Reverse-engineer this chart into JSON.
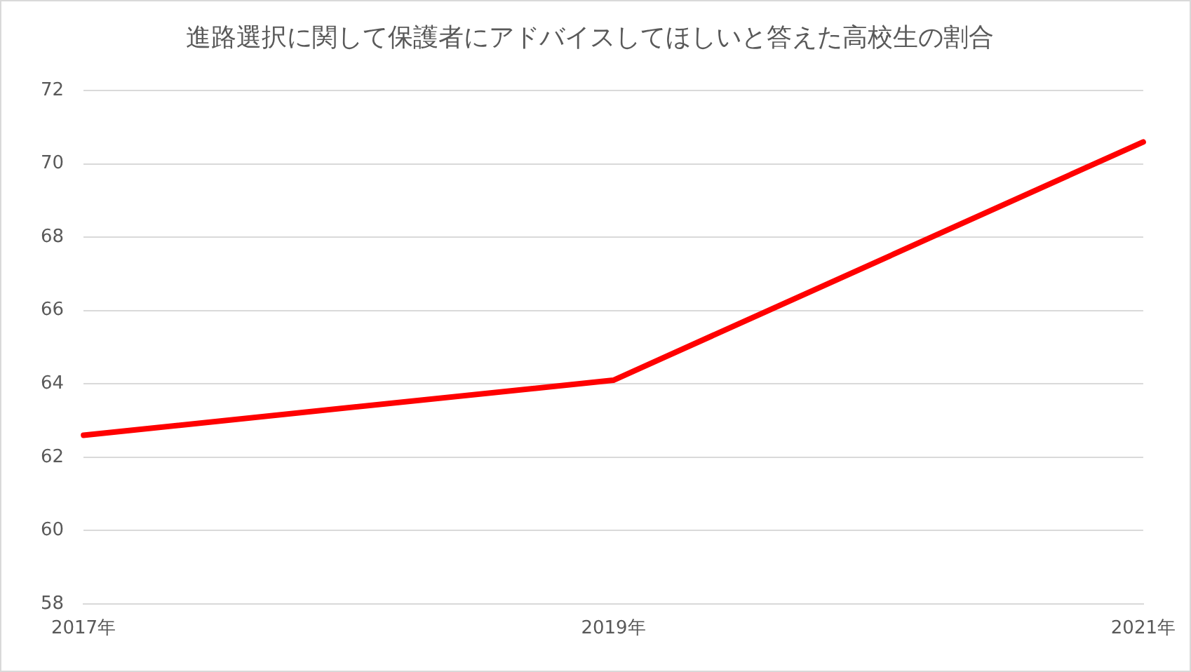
{
  "chart_data": {
    "type": "line",
    "title": "進路選択に関して保護者にアドバイスしてほしいと答えた高校生の割合",
    "categories": [
      "2017年",
      "2019年",
      "2021年"
    ],
    "series": [
      {
        "color": "#ff0000",
        "values": [
          62.6,
          64.1,
          70.6
        ]
      }
    ],
    "ylim": [
      58,
      72
    ],
    "yticks": [
      58,
      60,
      62,
      64,
      66,
      68,
      70,
      72
    ],
    "grid": "y",
    "legend": false,
    "marker": "none",
    "line_style": "solid"
  }
}
